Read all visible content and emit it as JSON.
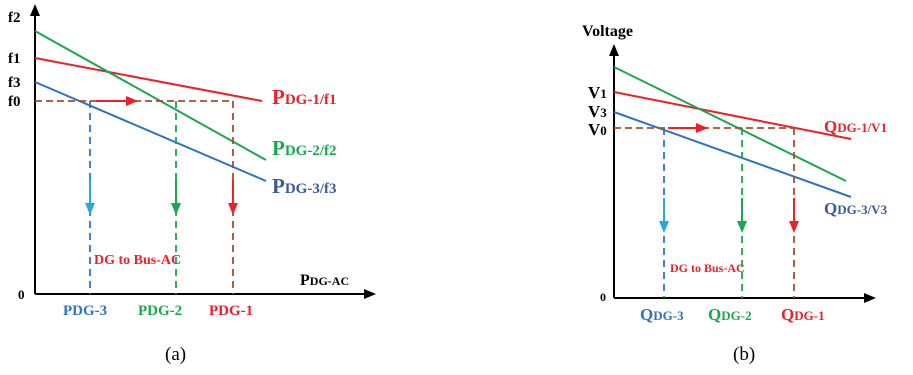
{
  "panel_a": {
    "caption": "(a)",
    "y_ticks": {
      "f2": "f2",
      "f1": "f1",
      "f3": "f3",
      "f0": "f0",
      "zero": "0"
    },
    "x_axis_label": {
      "main": "P",
      "sub": "DG-AC"
    },
    "line_labels": {
      "dg1": {
        "main": "P",
        "sub": "DG-1/f1"
      },
      "dg2": {
        "main": "P",
        "sub": "DG-2/f2"
      },
      "dg3": {
        "main": "P",
        "sub": "DG-3/f3"
      }
    },
    "x_ticks": {
      "dg3": "PDG-3",
      "dg2": "PDG-2",
      "dg1": "PDG-1"
    },
    "annotation": "DG to Bus-AC"
  },
  "panel_b": {
    "caption": "(b)",
    "y_axis_label": "Voltage",
    "y_ticks": {
      "v1": {
        "main": "V",
        "sub": "1"
      },
      "v3": {
        "main": "V",
        "sub": "3"
      },
      "v0": {
        "main": "V",
        "sub": "0"
      },
      "zero": "0"
    },
    "line_labels": {
      "dg1": {
        "main": "Q",
        "sub": "DG-1/V1"
      },
      "dg3": {
        "main": "Q",
        "sub": "DG-3/V3"
      }
    },
    "x_ticks": {
      "dg3": {
        "main": "Q",
        "sub": "DG-3"
      },
      "dg2": {
        "main": "Q",
        "sub": "DG-2"
      },
      "dg1": {
        "main": "Q",
        "sub": "DG-1"
      }
    },
    "annotation": "DG to Bus-AC"
  },
  "colors": {
    "dg1": "#e8212a",
    "dg2": "#19a84e",
    "dg3": "#2e74c1",
    "dg3_label": "#3a5a9c",
    "dg3_arrow": "#29a6e0",
    "ref": "#a0522d",
    "axis": "#000000"
  }
}
